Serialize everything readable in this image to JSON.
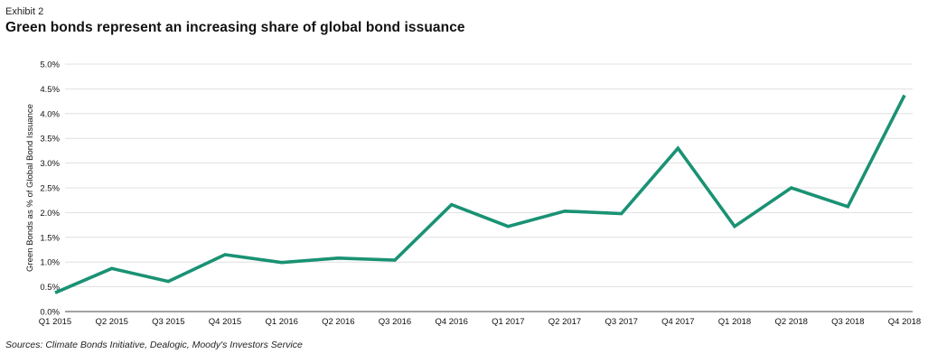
{
  "header": {
    "exhibit": "Exhibit 2",
    "title": "Green bonds represent an increasing share of global bond issuance"
  },
  "footer": {
    "source": "Sources: Climate Bonds Initiative, Dealogic, Moody's Investors Service"
  },
  "chart_data": {
    "type": "line",
    "title": "Green bonds represent an increasing share of global bond issuance",
    "xlabel": "",
    "ylabel": "Green Bonds as % of Global Bond Issuance",
    "categories": [
      "Q1 2015",
      "Q2 2015",
      "Q3 2015",
      "Q4 2015",
      "Q1 2016",
      "Q2 2016",
      "Q3 2016",
      "Q4 2016",
      "Q1 2017",
      "Q2 2017",
      "Q3 2017",
      "Q4 2017",
      "Q1 2018",
      "Q2 2018",
      "Q3 2018",
      "Q4 2018"
    ],
    "series": [
      {
        "values": [
          0.38,
          0.87,
          0.61,
          1.15,
          0.99,
          1.08,
          1.04,
          2.16,
          1.72,
          2.03,
          1.98,
          3.3,
          1.72,
          2.5,
          2.12,
          4.37
        ]
      }
    ],
    "ylim": [
      0,
      5
    ],
    "yticks": [
      "0.0%",
      "0.5%",
      "1.0%",
      "1.5%",
      "2.0%",
      "2.5%",
      "3.0%",
      "3.5%",
      "4.0%",
      "4.5%",
      "5.0%"
    ],
    "ytick_values": [
      0,
      0.5,
      1,
      1.5,
      2,
      2.5,
      3,
      3.5,
      4,
      4.5,
      5
    ],
    "grid": true,
    "line_color": "#1a9274",
    "grid_color": "#d9d9d9"
  }
}
